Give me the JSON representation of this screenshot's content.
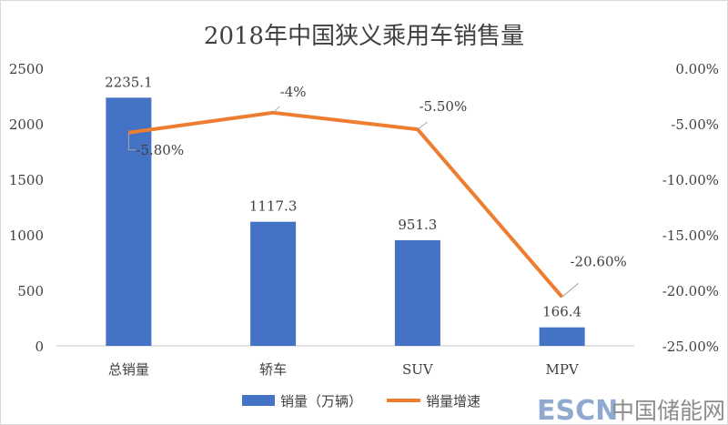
{
  "chart_data": {
    "type": "bar+line",
    "title": "2018年中国狭义乘用车销售量",
    "categories": [
      "总销量",
      "轿车",
      "SUV",
      "MPV"
    ],
    "series": [
      {
        "name": "销量（万辆）",
        "type": "bar",
        "axis": "left",
        "values": [
          2235.1,
          1117.3,
          951.3,
          166.4
        ],
        "labels": [
          "2235.1",
          "1117.3",
          "951.3",
          "166.4"
        ],
        "color": "#4472C4"
      },
      {
        "name": "销量增速",
        "type": "line",
        "axis": "right",
        "values": [
          -5.8,
          -4,
          -5.5,
          -20.6
        ],
        "labels": [
          "-5.80%",
          "-4%",
          "-5.50%",
          "-20.60%"
        ],
        "color": "#ED7D31"
      }
    ],
    "left_axis": {
      "ylim": [
        0,
        2500
      ],
      "ticks": [
        "0",
        "500",
        "1000",
        "1500",
        "2000",
        "2500"
      ]
    },
    "right_axis": {
      "ylim": [
        -25,
        0
      ],
      "ticks": [
        "-25.00%",
        "-20.00%",
        "-15.00%",
        "-10.00%",
        "-5.00%",
        "0.00%"
      ]
    },
    "grid": false,
    "legend_position": "bottom"
  },
  "watermark": {
    "text": "ESCN中国储能网",
    "latin": "ESCN",
    "cjk": "中国储能网"
  }
}
